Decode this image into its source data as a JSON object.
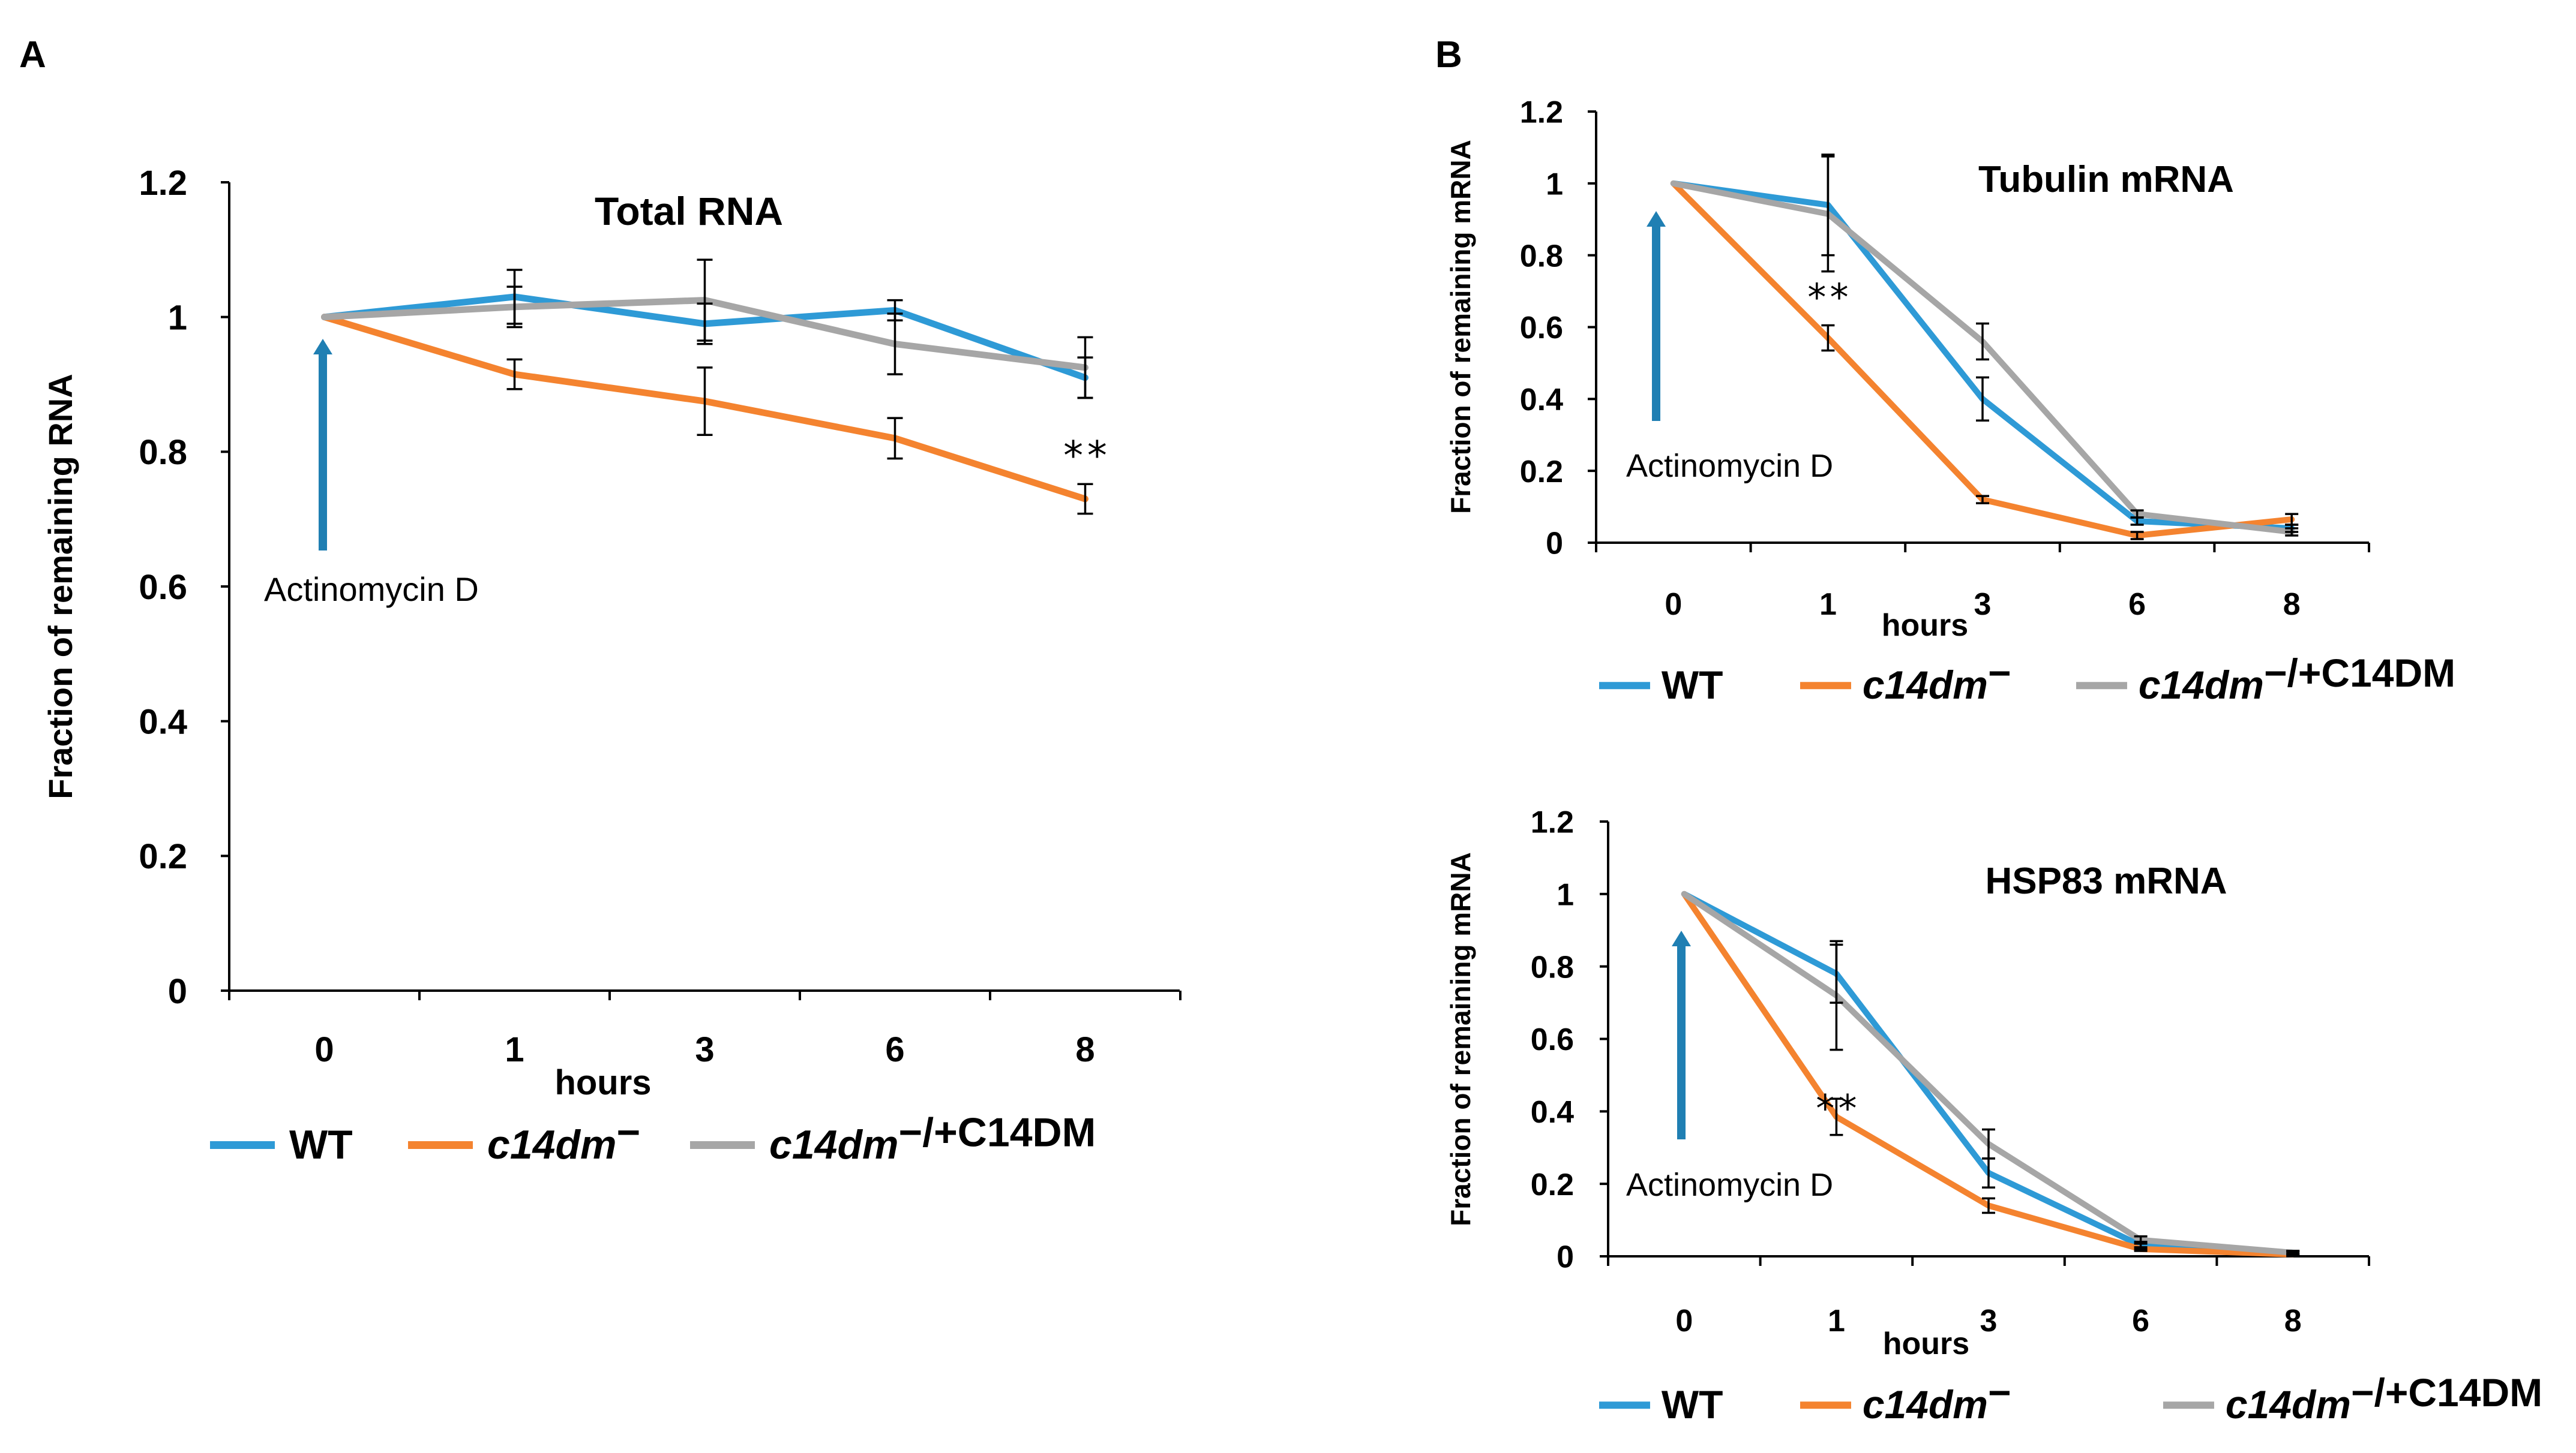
{
  "panel_labels": [
    "A",
    "B"
  ],
  "colors": {
    "WT": "#2E9AD6",
    "c14dm": "#F4832F",
    "rescue": "#A6A6A6",
    "arrow": "#1F7FB3"
  },
  "chart_data": [
    {
      "id": "A",
      "type": "line",
      "title": "Total RNA",
      "xlabel": "hours",
      "ylabel": "Fraction of remaining RNA",
      "categories": [
        "0",
        "1",
        "3",
        "6",
        "8"
      ],
      "ylim": [
        0,
        1.2
      ],
      "yticks": [
        "0",
        "0.2",
        "0.4",
        "0.6",
        "0.8",
        "1",
        "1.2"
      ],
      "arrow_label": "Actinomycin D",
      "significance": {
        "label": "**",
        "category_index": 4
      },
      "legend": {
        "wt": "WT",
        "mut": "c14dm",
        "mut_sup": "−",
        "mut2": "c14dm",
        "mut2_sup": "−",
        "mut2_suffix": "/+C14DM"
      },
      "series": [
        {
          "name": "WT",
          "values": [
            1.0,
            1.03,
            0.99,
            1.01,
            0.91
          ],
          "errors": [
            0,
            0.04,
            0.03,
            0.015,
            0.03
          ]
        },
        {
          "name": "c14dm−",
          "values": [
            1.0,
            0.915,
            0.875,
            0.82,
            0.73
          ],
          "errors": [
            0,
            0.022,
            0.05,
            0.03,
            0.022
          ]
        },
        {
          "name": "c14dm−/+C14DM",
          "values": [
            1.0,
            1.015,
            1.025,
            0.96,
            0.925
          ],
          "errors": [
            0,
            0.03,
            0.06,
            0.045,
            0.045
          ]
        }
      ]
    },
    {
      "id": "B1",
      "type": "line",
      "title": "Tubulin mRNA",
      "xlabel": "hours",
      "ylabel": "Fraction of remaining mRNA",
      "categories": [
        "0",
        "1",
        "3",
        "6",
        "8"
      ],
      "ylim": [
        0,
        1.2
      ],
      "yticks": [
        "0",
        "0.2",
        "0.4",
        "0.6",
        "0.8",
        "1",
        "1.2"
      ],
      "arrow_label": "Actinomycin D",
      "significance": {
        "label": "**",
        "category_index": 1
      },
      "legend": {
        "wt": "WT",
        "mut": "c14dm",
        "mut_sup": "−",
        "mut2": "c14dm",
        "mut2_sup": "−",
        "mut2_suffix": "/+C14DM"
      },
      "series": [
        {
          "name": "WT",
          "values": [
            1.0,
            0.94,
            0.4,
            0.06,
            0.04
          ],
          "errors": [
            0,
            0.14,
            0.06,
            0.01,
            0.01
          ]
        },
        {
          "name": "c14dm−",
          "values": [
            1.0,
            0.57,
            0.12,
            0.02,
            0.065
          ],
          "errors": [
            0,
            0.035,
            0.01,
            0.01,
            0.015
          ]
        },
        {
          "name": "c14dm−/+C14DM",
          "values": [
            1.0,
            0.915,
            0.56,
            0.08,
            0.03
          ],
          "errors": [
            0,
            0.16,
            0.05,
            0.01,
            0.01
          ]
        }
      ]
    },
    {
      "id": "B2",
      "type": "line",
      "title": "HSP83 mRNA",
      "xlabel": "hours",
      "ylabel": "Fraction of remaining mRNA",
      "categories": [
        "0",
        "1",
        "3",
        "6",
        "8"
      ],
      "ylim": [
        0,
        1.2
      ],
      "yticks": [
        "0",
        "0.2",
        "0.4",
        "0.6",
        "0.8",
        "1",
        "1.2"
      ],
      "arrow_label": "Actinomycin D",
      "significance": {
        "label": "**",
        "category_index": 1
      },
      "legend": {
        "wt": "WT",
        "mut": "c14dm",
        "mut_sup": "−",
        "mut2": "c14dm",
        "mut2_sup": "−",
        "mut2_suffix": "/+C14DM"
      },
      "series": [
        {
          "name": "WT",
          "values": [
            1.0,
            0.78,
            0.23,
            0.03,
            0.01
          ],
          "errors": [
            0,
            0.08,
            0.04,
            0.01,
            0.005
          ]
        },
        {
          "name": "c14dm−",
          "values": [
            1.0,
            0.385,
            0.14,
            0.02,
            0.005
          ],
          "errors": [
            0,
            0.05,
            0.02,
            0.005,
            0.005
          ]
        },
        {
          "name": "c14dm−/+C14DM",
          "values": [
            1.0,
            0.72,
            0.31,
            0.045,
            0.01
          ],
          "errors": [
            0,
            0.15,
            0.04,
            0.01,
            0.005
          ]
        }
      ]
    }
  ]
}
